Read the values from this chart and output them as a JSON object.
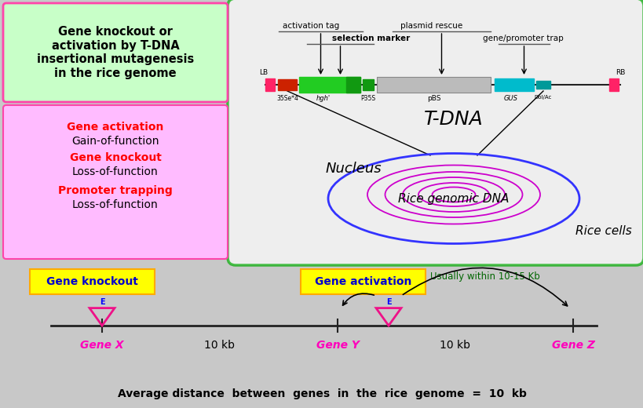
{
  "bg_color": "#c8c8c8",
  "title_box_color": "#c8ffc8",
  "title_box_edge": "#ff44aa",
  "title_text": "Gene knockout or\nactivation by T-DNA\ninsertional mutagenesis\nin the rice genome",
  "left_box_color": "#ffbbff",
  "left_box_edge": "#ff44aa",
  "rice_cell_border": "#00aa00",
  "nucleus_color": "#3333ff",
  "dna_magenta": "#cc00cc",
  "gene_label_color": "#ff00bb",
  "bottom_text": "Average distance  between  genes  in  the  rice  genome  =  10  kb",
  "usually_text": "Usually within 10-15 Kb",
  "usually_color": "#006600",
  "lb_rb_color": "#ff2266",
  "repeats_color": "#cc2200",
  "green_block_color": "#22cc22",
  "dark_green_color": "#119911",
  "gray_block_color": "#bbbbbb",
  "gray_block_edge": "#888888",
  "teal_block_color": "#00bbcc",
  "small_teal_color": "#009999",
  "line_color": "#222222",
  "rice_cell_bg": "#ffffff",
  "nucleus_label_color": "#000000",
  "rice_dna_label_color": "#000000",
  "rice_cells_label_color": "#000000",
  "tdna_label_color": "#000000",
  "anno_line_color": "#555555",
  "box_label_color": "#0000cc"
}
